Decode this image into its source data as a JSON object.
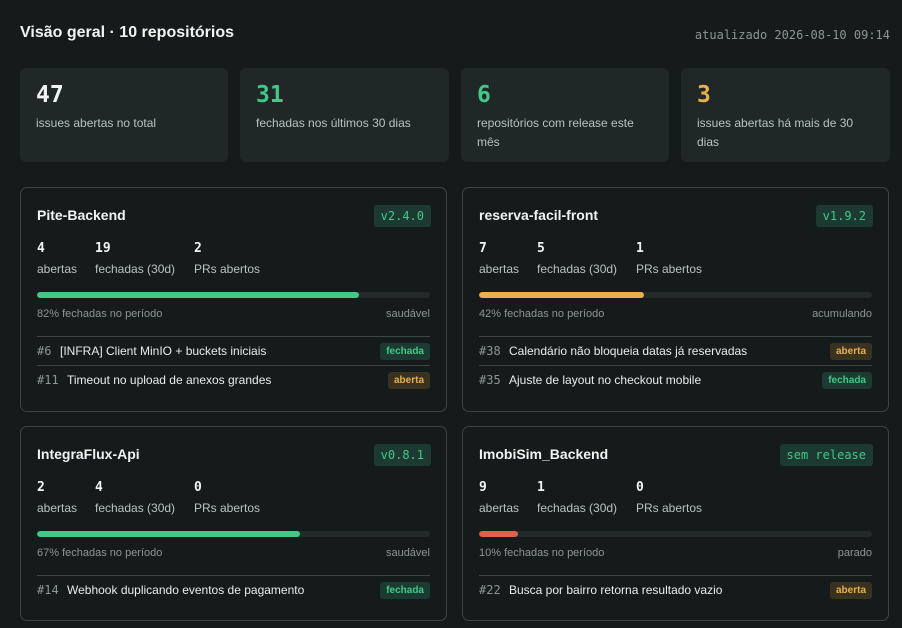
{
  "header": {
    "title": "Visão geral · 10 repositórios",
    "updated": "atualizado 2026-08-10 09:14"
  },
  "stats": [
    {
      "value": "47",
      "label": "issues abertas no total",
      "color": "#f0f4f2"
    },
    {
      "value": "31",
      "label": "fechadas nos últimos 30 dias",
      "color": "#41c889"
    },
    {
      "value": "6",
      "label": "repositórios com release este mês",
      "color": "#41c889"
    },
    {
      "value": "3",
      "label": "issues abertas há mais de 30 dias",
      "color": "#e9b04e"
    }
  ],
  "metric_labels": {
    "open": "abertas",
    "closed": "fechadas (30d)",
    "prs": "PRs abertos"
  },
  "status_colors": {
    "saudável": "#41c889",
    "acumulando": "#e9b04e",
    "parado": "#e0614b"
  },
  "repos": [
    {
      "name": "Pite-Backend",
      "release": "v2.4.0",
      "open": "4",
      "closed": "19",
      "prs": "2",
      "progress": 0.82,
      "progress_text": "82% fechadas no período",
      "health": "saudável",
      "issues": [
        {
          "num": "#6",
          "title": "[INFRA] Client MinIO + buckets iniciais",
          "status": "fechada"
        },
        {
          "num": "#11",
          "title": "Timeout no upload de anexos grandes",
          "status": "aberta"
        }
      ]
    },
    {
      "name": "reserva-facil-front",
      "release": "v1.9.2",
      "open": "7",
      "closed": "5",
      "prs": "1",
      "progress": 0.42,
      "progress_text": "42% fechadas no período",
      "health": "acumulando",
      "issues": [
        {
          "num": "#38",
          "title": "Calendário não bloqueia datas já reservadas",
          "status": "aberta"
        },
        {
          "num": "#35",
          "title": "Ajuste de layout no checkout mobile",
          "status": "fechada"
        }
      ]
    },
    {
      "name": "IntegraFlux-Api",
      "release": "v0.8.1",
      "open": "2",
      "closed": "4",
      "prs": "0",
      "progress": 0.67,
      "progress_text": "67% fechadas no período",
      "health": "saudável",
      "issues": [
        {
          "num": "#14",
          "title": "Webhook duplicando eventos de pagamento",
          "status": "fechada"
        }
      ]
    },
    {
      "name": "ImobiSim_Backend",
      "release": "sem release",
      "open": "9",
      "closed": "1",
      "prs": "0",
      "progress": 0.1,
      "progress_text": "10% fechadas no período",
      "health": "parado",
      "issues": [
        {
          "num": "#22",
          "title": "Busca por bairro retorna resultado vazio",
          "status": "aberta"
        }
      ]
    }
  ]
}
